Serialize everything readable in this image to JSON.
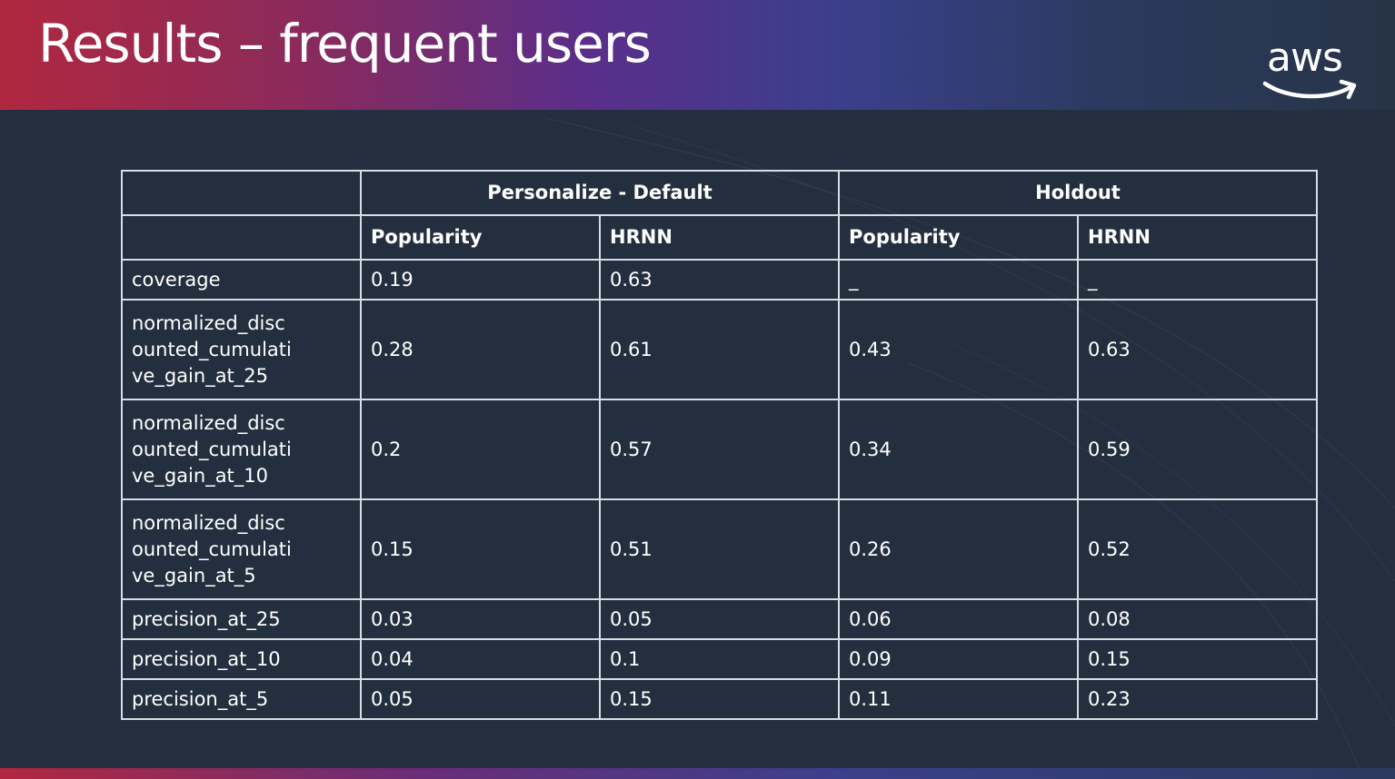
{
  "slide": {
    "title": "Results – frequent users",
    "logo_text": "aws"
  },
  "colors": {
    "background": "#232f3e",
    "header_gradient_start": "#b0283f",
    "header_gradient_mid": "#5a2e8a",
    "header_gradient_end": "#273447",
    "text": "#ffffff",
    "table_border": "#d8dde4"
  },
  "table": {
    "groups": [
      "Personalize - Default",
      "Holdout"
    ],
    "subheaders": [
      "Popularity",
      "HRNN",
      "Popularity",
      "HRNN"
    ],
    "rows": [
      {
        "metric": "coverage",
        "values": [
          "0.19",
          "0.63",
          "_",
          "_"
        ]
      },
      {
        "metric": "normalized_discounted_cumulative_gain_at_25",
        "values": [
          "0.28",
          "0.61",
          "0.43",
          "0.63"
        ]
      },
      {
        "metric": "normalized_discounted_cumulative_gain_at_10",
        "values": [
          "0.2",
          "0.57",
          "0.34",
          "0.59"
        ]
      },
      {
        "metric": "normalized_discounted_cumulative_gain_at_5",
        "values": [
          "0.15",
          "0.51",
          "0.26",
          "0.52"
        ]
      },
      {
        "metric": "precision_at_25",
        "values": [
          "0.03",
          "0.05",
          "0.06",
          "0.08"
        ]
      },
      {
        "metric": "precision_at_10",
        "values": [
          "0.04",
          "0.1",
          "0.09",
          "0.15"
        ]
      },
      {
        "metric": "precision_at_5",
        "values": [
          "0.05",
          "0.15",
          "0.11",
          "0.23"
        ]
      }
    ]
  }
}
